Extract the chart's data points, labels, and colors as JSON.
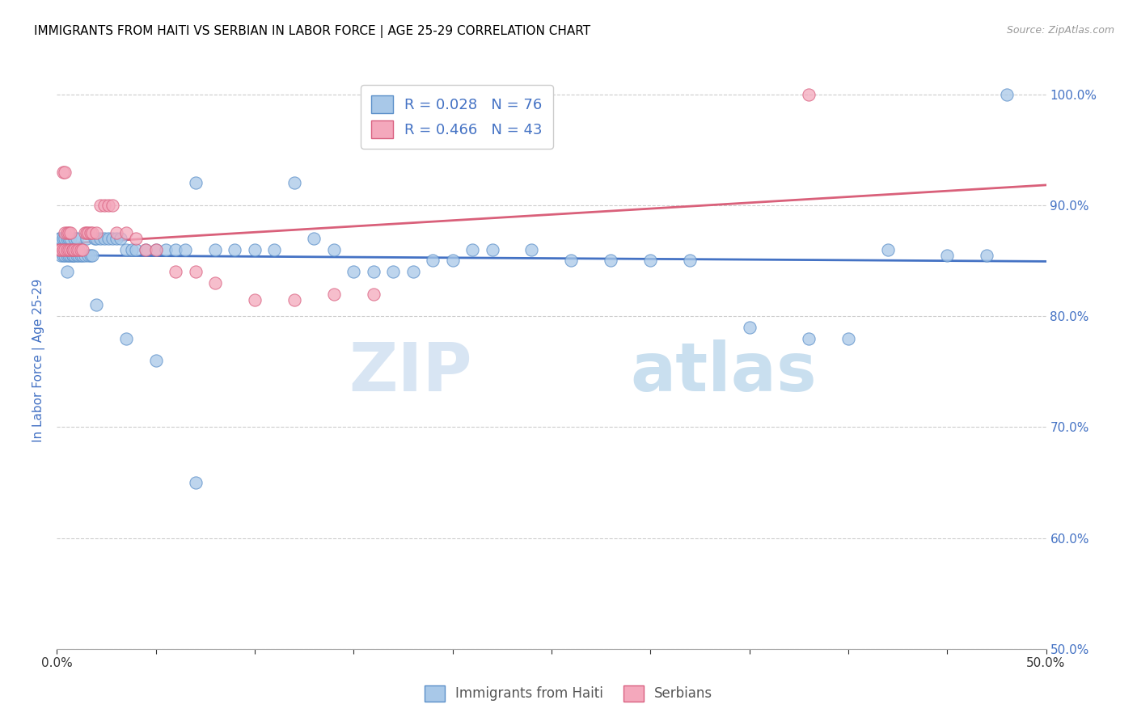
{
  "title": "IMMIGRANTS FROM HAITI VS SERBIAN IN LABOR FORCE | AGE 25-29 CORRELATION CHART",
  "source": "Source: ZipAtlas.com",
  "ylabel": "In Labor Force | Age 25-29",
  "xlim": [
    0.0,
    0.5
  ],
  "ylim": [
    0.5,
    1.02
  ],
  "x_ticks": [
    0.0,
    0.05,
    0.1,
    0.15,
    0.2,
    0.25,
    0.3,
    0.35,
    0.4,
    0.45,
    0.5
  ],
  "x_tick_labels": [
    "0.0%",
    "",
    "",
    "",
    "",
    "",
    "",
    "",
    "",
    "",
    "50.0%"
  ],
  "y_ticks": [
    0.5,
    0.6,
    0.7,
    0.8,
    0.9,
    1.0
  ],
  "y_tick_labels": [
    "50.0%",
    "60.0%",
    "70.0%",
    "80.0%",
    "90.0%",
    "100.0%"
  ],
  "haiti_color": "#a8c8e8",
  "serbian_color": "#f4a8bc",
  "haiti_edge_color": "#5b8fc9",
  "serbian_edge_color": "#d96080",
  "haiti_line_color": "#4472c4",
  "serbian_line_color": "#d9607a",
  "R_haiti": 0.028,
  "N_haiti": 76,
  "R_serbian": 0.466,
  "N_serbian": 43,
  "haiti_scatter_x": [
    0.001,
    0.002,
    0.002,
    0.003,
    0.003,
    0.004,
    0.004,
    0.005,
    0.005,
    0.006,
    0.006,
    0.007,
    0.007,
    0.008,
    0.008,
    0.009,
    0.009,
    0.01,
    0.01,
    0.011,
    0.012,
    0.013,
    0.014,
    0.015,
    0.016,
    0.017,
    0.018,
    0.019,
    0.02,
    0.022,
    0.024,
    0.026,
    0.028,
    0.03,
    0.032,
    0.035,
    0.038,
    0.04,
    0.045,
    0.05,
    0.055,
    0.06,
    0.065,
    0.07,
    0.08,
    0.09,
    0.1,
    0.11,
    0.12,
    0.13,
    0.14,
    0.15,
    0.16,
    0.17,
    0.18,
    0.19,
    0.2,
    0.21,
    0.22,
    0.24,
    0.26,
    0.28,
    0.3,
    0.32,
    0.35,
    0.38,
    0.4,
    0.42,
    0.45,
    0.47,
    0.48,
    0.005,
    0.02,
    0.035,
    0.05,
    0.07
  ],
  "haiti_scatter_y": [
    0.87,
    0.855,
    0.87,
    0.855,
    0.87,
    0.855,
    0.87,
    0.855,
    0.87,
    0.855,
    0.87,
    0.855,
    0.87,
    0.855,
    0.855,
    0.855,
    0.87,
    0.855,
    0.87,
    0.855,
    0.855,
    0.855,
    0.855,
    0.87,
    0.855,
    0.855,
    0.855,
    0.87,
    0.87,
    0.87,
    0.87,
    0.87,
    0.87,
    0.87,
    0.87,
    0.86,
    0.86,
    0.86,
    0.86,
    0.86,
    0.86,
    0.86,
    0.86,
    0.92,
    0.86,
    0.86,
    0.86,
    0.86,
    0.92,
    0.87,
    0.86,
    0.84,
    0.84,
    0.84,
    0.84,
    0.85,
    0.85,
    0.86,
    0.86,
    0.86,
    0.85,
    0.85,
    0.85,
    0.85,
    0.79,
    0.78,
    0.78,
    0.86,
    0.855,
    0.855,
    1.0,
    0.84,
    0.81,
    0.78,
    0.76,
    0.65
  ],
  "serbian_scatter_x": [
    0.001,
    0.002,
    0.003,
    0.004,
    0.004,
    0.005,
    0.005,
    0.006,
    0.006,
    0.007,
    0.007,
    0.008,
    0.008,
    0.009,
    0.01,
    0.011,
    0.012,
    0.013,
    0.014,
    0.015,
    0.016,
    0.017,
    0.018,
    0.02,
    0.022,
    0.024,
    0.026,
    0.028,
    0.03,
    0.035,
    0.04,
    0.045,
    0.05,
    0.06,
    0.07,
    0.08,
    0.1,
    0.12,
    0.14,
    0.16,
    0.003,
    0.004,
    0.38
  ],
  "serbian_scatter_y": [
    0.86,
    0.86,
    0.86,
    0.86,
    0.875,
    0.86,
    0.875,
    0.86,
    0.875,
    0.86,
    0.875,
    0.86,
    0.86,
    0.86,
    0.86,
    0.86,
    0.86,
    0.86,
    0.875,
    0.875,
    0.875,
    0.875,
    0.875,
    0.875,
    0.9,
    0.9,
    0.9,
    0.9,
    0.875,
    0.875,
    0.87,
    0.86,
    0.86,
    0.84,
    0.84,
    0.83,
    0.815,
    0.815,
    0.82,
    0.82,
    0.93,
    0.93,
    1.0
  ],
  "watermark_zip": "ZIP",
  "watermark_atlas": "atlas",
  "title_fontsize": 11,
  "axis_label_color": "#4472c4",
  "tick_color_x": "#333333",
  "tick_color_y": "#4472c4",
  "grid_color": "#cccccc",
  "legend_fontsize": 13
}
